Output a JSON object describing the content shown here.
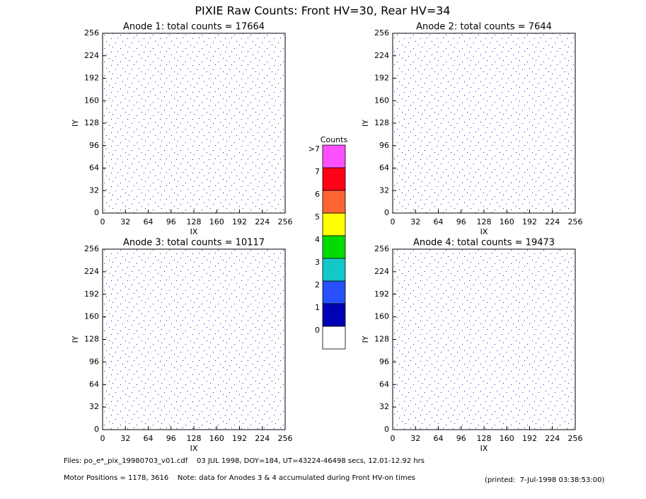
{
  "title": "PIXIE Raw Counts:  Front HV=30, Rear HV=34",
  "chart_data": [
    {
      "type": "image",
      "title": "Anode 1: total counts = 17664",
      "xlabel": "IX",
      "ylabel": "IY",
      "xlim": [
        0,
        256
      ],
      "ylim": [
        0,
        256
      ],
      "xticks": [
        0,
        32,
        64,
        96,
        128,
        160,
        192,
        224,
        256
      ],
      "yticks": [
        0,
        32,
        64,
        96,
        128,
        160,
        192,
        224,
        256
      ]
    },
    {
      "type": "image",
      "title": "Anode 2: total counts = 7644",
      "xlabel": "IX",
      "ylabel": "IY",
      "xlim": [
        0,
        256
      ],
      "ylim": [
        0,
        256
      ],
      "xticks": [
        0,
        32,
        64,
        96,
        128,
        160,
        192,
        224,
        256
      ],
      "yticks": [
        0,
        32,
        64,
        96,
        128,
        160,
        192,
        224,
        256
      ]
    },
    {
      "type": "image",
      "title": "Anode 3: total counts = 10117",
      "xlabel": "IX",
      "ylabel": "IY",
      "xlim": [
        0,
        256
      ],
      "ylim": [
        0,
        256
      ],
      "xticks": [
        0,
        32,
        64,
        96,
        128,
        160,
        192,
        224,
        256
      ],
      "yticks": [
        0,
        32,
        64,
        96,
        128,
        160,
        192,
        224,
        256
      ]
    },
    {
      "type": "image",
      "title": "Anode 4: total counts = 19473",
      "xlabel": "IX",
      "ylabel": "IY",
      "xlim": [
        0,
        256
      ],
      "ylim": [
        0,
        256
      ],
      "xticks": [
        0,
        32,
        64,
        96,
        128,
        160,
        192,
        224,
        256
      ],
      "yticks": [
        0,
        32,
        64,
        96,
        128,
        160,
        192,
        224,
        256
      ]
    }
  ],
  "colorbar": {
    "title": "Counts",
    "labels": [
      0,
      1,
      2,
      3,
      4,
      5,
      6,
      7,
      ">7"
    ],
    "colors": [
      "#ffffff",
      "#0000b4",
      "#2850ff",
      "#14c8c8",
      "#00dc00",
      "#ffff00",
      "#ff6432",
      "#ff0014",
      "#ff50ff"
    ]
  },
  "footer": {
    "files": "Files: po_e*_pix_19980703_v01.cdf    03 JUL 1998, DOY=184, UT=43224-46498 secs, 12.01-12.92 hrs",
    "motor": "Motor Positions = 1178, 3616    Note: data for Anodes 3 & 4 accumulated during Front HV-on times",
    "printed": "(printed:  7-Jul-1998 03:38:53:00)"
  }
}
